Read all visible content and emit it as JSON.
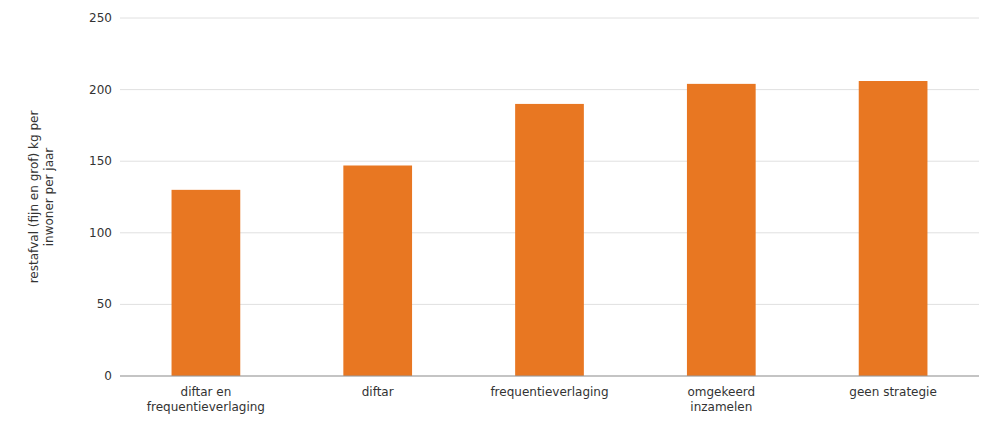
{
  "chart_data": {
    "type": "bar",
    "categories": [
      "diftar en\nfrequentieverlaging",
      "diftar",
      "frequentieverlaging",
      "omgekeerd\ninzamelen",
      "geen strategie"
    ],
    "values": [
      130,
      147,
      190,
      204,
      206
    ],
    "color": "#E87722",
    "ylabel": "restafval (fijn en grof) kg per\ninwoner per jaar",
    "ylim": [
      0,
      250
    ],
    "yticks": [
      0,
      50,
      100,
      150,
      200,
      250
    ],
    "grid": true
  }
}
